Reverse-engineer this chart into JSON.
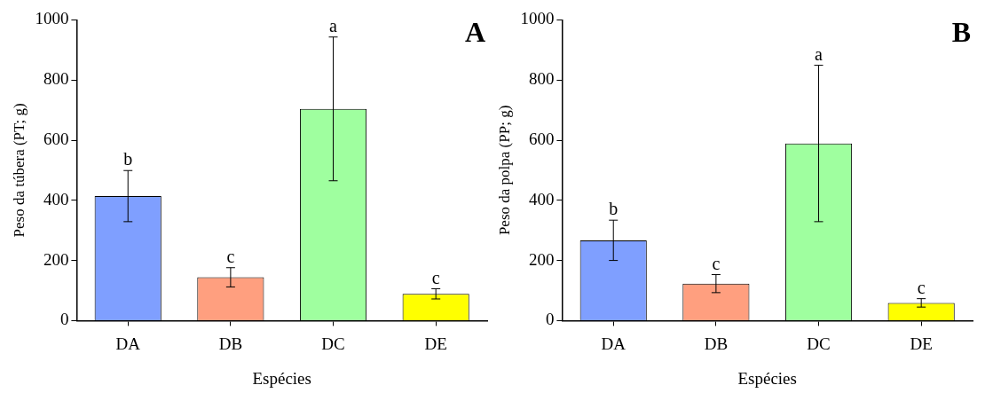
{
  "chart_data": [
    {
      "type": "bar",
      "title": "A",
      "xlabel": "Espécies",
      "ylabel": "Peso da túbera (PT; g)",
      "categories": [
        "DA",
        "DB",
        "DC",
        "DE"
      ],
      "values": [
        414,
        144,
        704,
        89
      ],
      "errors": [
        85,
        32,
        239,
        17
      ],
      "colors": [
        "#7f9fff",
        "#ff9f7f",
        "#9fff9f",
        "#ffff00"
      ],
      "ylim": [
        0,
        1000
      ],
      "yticks": [
        0,
        200,
        400,
        600,
        800,
        1000
      ],
      "grid": false,
      "legend": false,
      "annotations": [
        {
          "text": "b",
          "x": "DA",
          "y": 499
        },
        {
          "text": "c",
          "x": "DB",
          "y": 176
        },
        {
          "text": "a",
          "x": "DC",
          "y": 943
        },
        {
          "text": "c",
          "x": "DE",
          "y": 106
        }
      ]
    },
    {
      "type": "bar",
      "title": "B",
      "xlabel": "Espécies",
      "ylabel": "Peso da polpa (PP; g)",
      "categories": [
        "DA",
        "DB",
        "DC",
        "DE"
      ],
      "values": [
        267,
        123,
        589,
        59
      ],
      "errors": [
        67,
        30,
        260,
        14
      ],
      "colors": [
        "#7f9fff",
        "#ff9f7f",
        "#9fff9f",
        "#ffff00"
      ],
      "ylim": [
        0,
        1000
      ],
      "yticks": [
        0,
        200,
        400,
        600,
        800,
        1000
      ],
      "grid": false,
      "legend": false,
      "annotations": [
        {
          "text": "b",
          "x": "DA",
          "y": 334
        },
        {
          "text": "c",
          "x": "DB",
          "y": 153
        },
        {
          "text": "a",
          "x": "DC",
          "y": 849
        },
        {
          "text": "c",
          "x": "DE",
          "y": 73
        }
      ]
    }
  ]
}
